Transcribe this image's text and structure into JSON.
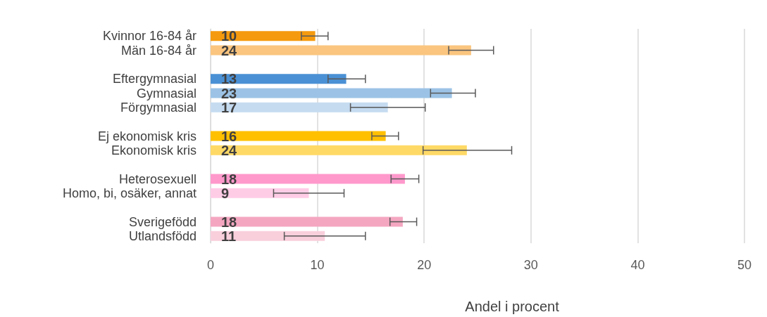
{
  "chart_data": {
    "type": "bar",
    "orientation": "horizontal",
    "xlabel": "Andel i procent",
    "categories": [
      "Kvinnor 16-84 år",
      "Män 16-84 år",
      null,
      "Eftergymnasial",
      "Gymnasial",
      "Förgymnasial",
      null,
      "Ej ekonomisk kris",
      "Ekonomisk kris",
      null,
      "Heterosexuell",
      "Homo, bi, osäker, annat",
      null,
      "Sverigefödd",
      "Utlandsfödd"
    ],
    "values": [
      9.8,
      24.4,
      null,
      12.7,
      22.6,
      16.6,
      null,
      16.4,
      24.0,
      null,
      18.2,
      9.2,
      null,
      18.0,
      10.7
    ],
    "value_labels": [
      "10",
      "24",
      null,
      "13",
      "23",
      "17",
      null,
      "16",
      "24",
      null,
      "18",
      "9",
      null,
      "18",
      "11"
    ],
    "colors": [
      "#f59a0e",
      "#fbc57f",
      null,
      "#4a90d4",
      "#9cc3e6",
      "#c5dbf0",
      null,
      "#ffc000",
      "#ffd966",
      null,
      "#ff99cc",
      "#ffcce6",
      null,
      "#f4a6c0",
      "#f9cfdc"
    ],
    "errors": [
      [
        8.5,
        11.0
      ],
      [
        22.3,
        26.5
      ],
      null,
      [
        11.0,
        14.5
      ],
      [
        20.6,
        24.8
      ],
      [
        13.1,
        20.1
      ],
      null,
      [
        15.1,
        17.6
      ],
      [
        19.9,
        28.2
      ],
      null,
      [
        16.9,
        19.5
      ],
      [
        5.9,
        12.5
      ],
      null,
      [
        16.8,
        19.3
      ],
      [
        6.9,
        14.5
      ]
    ],
    "xlim": [
      0,
      50
    ],
    "xticks": [
      0,
      10,
      20,
      30,
      40,
      50
    ],
    "grid": "x"
  }
}
